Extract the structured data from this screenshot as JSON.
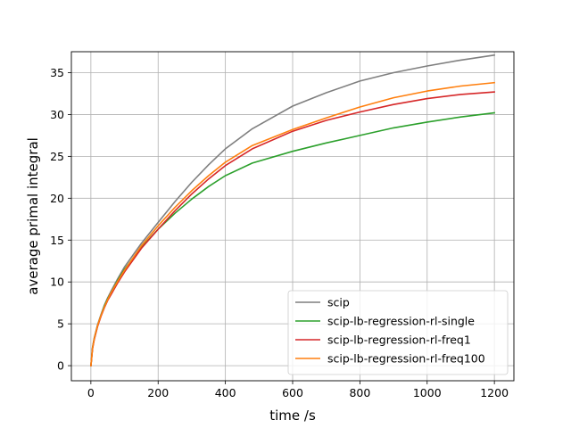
{
  "chart_data": {
    "type": "line",
    "title": "",
    "xlabel": "time /s",
    "ylabel": "average primal integral",
    "xlim": [
      -58,
      1258
    ],
    "ylim": [
      -1.8,
      37.5
    ],
    "xticks": [
      0,
      200,
      400,
      600,
      800,
      1000,
      1200
    ],
    "yticks": [
      0,
      5,
      10,
      15,
      20,
      25,
      30,
      35
    ],
    "grid": true,
    "legend_position": "lower-right",
    "series": [
      {
        "name": "scip",
        "color": "#7f7f7f",
        "x": [
          0,
          5,
          10,
          20,
          30,
          40,
          50,
          60,
          80,
          100,
          150,
          200,
          250,
          300,
          350,
          400,
          480,
          600,
          700,
          800,
          900,
          1000,
          1100,
          1200
        ],
        "y": [
          0,
          2.2,
          3.3,
          4.9,
          6.1,
          7.2,
          8.1,
          8.9,
          10.4,
          11.8,
          14.6,
          17.1,
          19.6,
          21.9,
          24.0,
          25.9,
          28.3,
          31.0,
          32.6,
          34.0,
          35.0,
          35.8,
          36.5,
          37.1
        ]
      },
      {
        "name": "scip-lb-regression-rl-single",
        "color": "#2ca02c",
        "x": [
          0,
          5,
          10,
          20,
          30,
          40,
          50,
          60,
          80,
          100,
          150,
          200,
          250,
          300,
          350,
          400,
          480,
          600,
          700,
          800,
          900,
          1000,
          1100,
          1200
        ],
        "y": [
          0,
          2.1,
          3.2,
          4.8,
          6.0,
          7.1,
          8.0,
          8.7,
          10.2,
          11.5,
          14.1,
          16.3,
          18.2,
          19.9,
          21.4,
          22.7,
          24.2,
          25.6,
          26.6,
          27.5,
          28.4,
          29.1,
          29.7,
          30.2
        ]
      },
      {
        "name": "scip-lb-regression-rl-freq1",
        "color": "#d62728",
        "x": [
          0,
          5,
          10,
          20,
          30,
          40,
          50,
          60,
          80,
          100,
          150,
          200,
          250,
          300,
          350,
          400,
          480,
          600,
          700,
          800,
          900,
          1000,
          1100,
          1200
        ],
        "y": [
          0,
          2.0,
          3.1,
          4.7,
          5.9,
          6.9,
          7.8,
          8.5,
          9.9,
          11.2,
          14.0,
          16.3,
          18.5,
          20.5,
          22.3,
          23.9,
          25.9,
          28.0,
          29.3,
          30.3,
          31.2,
          31.9,
          32.4,
          32.7
        ]
      },
      {
        "name": "scip-lb-regression-rl-freq100",
        "color": "#ff7f0e",
        "x": [
          0,
          5,
          10,
          20,
          30,
          40,
          50,
          60,
          80,
          100,
          150,
          200,
          250,
          300,
          350,
          400,
          480,
          600,
          700,
          800,
          900,
          1000,
          1100,
          1200
        ],
        "y": [
          0,
          2.1,
          3.2,
          4.8,
          6.0,
          7.0,
          7.9,
          8.7,
          10.1,
          11.4,
          14.3,
          16.7,
          18.9,
          20.9,
          22.7,
          24.3,
          26.3,
          28.2,
          29.6,
          30.9,
          32.0,
          32.8,
          33.4,
          33.8
        ]
      }
    ]
  }
}
